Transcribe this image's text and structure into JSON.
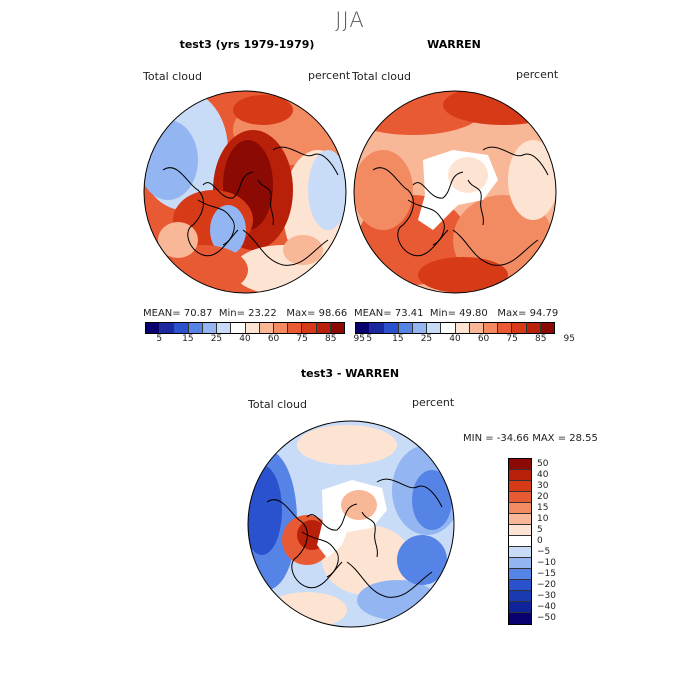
{
  "page_title": "JJA",
  "panels": {
    "left": {
      "title": "test3 (yrs 1979-1979)",
      "variable": "Total cloud",
      "units": "percent",
      "mean_label": "MEAN=",
      "mean": "70.87",
      "min_label": "Min=",
      "min": "23.22",
      "max_label": "Max=",
      "max": "98.66"
    },
    "right": {
      "title": "WARREN",
      "variable": "Total cloud",
      "units": "percent",
      "mean_label": "MEAN=",
      "mean": "73.41",
      "min_label": "Min=",
      "min": "49.80",
      "max_label": "Max=",
      "max": "94.79"
    },
    "diff": {
      "title": "test3 - WARREN",
      "variable": "Total cloud",
      "units": "percent",
      "minmax_text": "MIN = -34.66 MAX =  28.55"
    }
  },
  "colorbar_abs": {
    "labels": [
      "5",
      "15",
      "25",
      "40",
      "60",
      "75",
      "85",
      "95"
    ],
    "colors": [
      "#08006e",
      "#1a2a9c",
      "#2a52cf",
      "#5684e6",
      "#93b5f2",
      "#c9dcf7",
      "#ffffff",
      "#fde3d2",
      "#f8b796",
      "#f28a62",
      "#e85a33",
      "#d73a17",
      "#b8200a",
      "#8c0a04"
    ]
  },
  "colorbar_diff": {
    "labels": [
      "50",
      "40",
      "30",
      "20",
      "15",
      "10",
      "5",
      "0",
      "−5",
      "−10",
      "−15",
      "−20",
      "−30",
      "−40",
      "−50"
    ],
    "colors": [
      "#8c0a04",
      "#b8200a",
      "#d73a17",
      "#e85a33",
      "#f28a62",
      "#f8b796",
      "#fde3d2",
      "#ffffff",
      "#c9dcf7",
      "#93b5f2",
      "#5684e6",
      "#2a52cf",
      "#1a3ab0",
      "#10249a",
      "#08006e"
    ]
  }
}
